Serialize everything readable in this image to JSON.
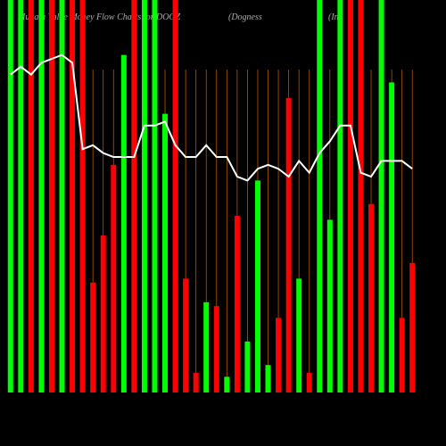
{
  "chart_data": {
    "type": "bar",
    "title": "Munafa Value Money Flow Charts for DOGZ",
    "subtitle": "(Dogness",
    "subtitle2": "(Int",
    "categories": [
      null,
      null,
      null,
      null,
      null,
      null,
      null,
      null,
      null,
      null,
      null,
      null,
      null,
      null,
      null,
      null,
      null,
      null,
      null,
      null,
      null,
      null,
      null,
      null,
      null,
      null,
      null,
      null,
      null,
      null,
      null,
      null,
      null,
      null,
      null,
      null,
      null,
      null,
      null,
      null
    ],
    "ylim": [
      0,
      100
    ],
    "series": [
      {
        "type": "bar",
        "colors": [
          "#00ff00",
          "#00ff00",
          "#ff0000",
          "#00ff00",
          "#ff0000",
          "#00ff00",
          "#ff0000",
          "#ff0000",
          "#ff0000",
          "#ff0000",
          "#ff0000",
          "#00ff00",
          "#ff0000",
          "#00ff00",
          "#00ff00",
          "#00ff00",
          "#ff0000",
          "#ff0000",
          "#ff0000",
          "#00ff00",
          "#ff0000",
          "#00ff00",
          "#ff0000",
          "#00ff00",
          "#00ff00",
          "#00ff00",
          "#ff0000",
          "#ff0000",
          "#00ff00",
          "#ff0000",
          "#00ff00",
          "#00ff00",
          "#00ff00",
          "#ff0000",
          "#ff0000",
          "#ff0000",
          "#00ff00",
          "#00ff00",
          "#ff0000",
          "#ff0000"
        ],
        "values": [
          100,
          100,
          100,
          100,
          100,
          100,
          100,
          100,
          28,
          40,
          58,
          86,
          100,
          100,
          100,
          71,
          100,
          29,
          5,
          23,
          22,
          4,
          45,
          13,
          54,
          7,
          19,
          75,
          29,
          5,
          100,
          44,
          100,
          100,
          100,
          48,
          100,
          79,
          19,
          33
        ]
      },
      {
        "type": "line",
        "color": "#ffffff",
        "values": [
          81,
          83,
          81,
          84,
          85,
          86,
          84,
          62,
          63,
          61,
          60,
          60,
          60,
          68,
          68,
          69,
          63,
          60,
          60,
          63,
          60,
          60,
          55,
          54,
          57,
          58,
          57,
          55,
          59,
          56,
          61,
          64,
          68,
          68,
          56,
          55,
          59,
          59,
          59,
          57
        ]
      }
    ]
  }
}
